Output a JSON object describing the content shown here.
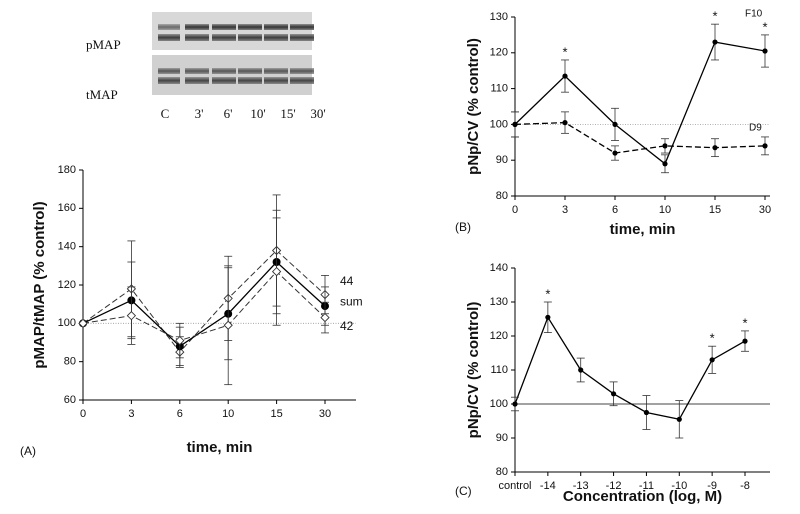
{
  "blot": {
    "rows": [
      "pMAP",
      "tMAP"
    ],
    "lanes": [
      "C",
      "3'",
      "6'",
      "10'",
      "15'",
      "30'"
    ]
  },
  "chart_data": [
    {
      "type": "line",
      "panel": "(A)",
      "xlabel": "time, min",
      "ylabel": "pMAP/tMAP (% control)",
      "categories": [
        "0",
        "3",
        "6",
        "10",
        "15",
        "30"
      ],
      "ylim": [
        60,
        180
      ],
      "yticks": [
        60,
        80,
        100,
        120,
        140,
        160,
        180
      ],
      "reference_line": 100,
      "series": [
        {
          "name": "44",
          "color": "#333333",
          "style": "dashed",
          "marker": "open-diamond",
          "values": [
            100,
            118,
            85,
            113,
            138,
            115
          ],
          "errors": [
            0,
            25,
            8,
            22,
            29,
            10
          ]
        },
        {
          "name": "sum",
          "color": "#000000",
          "style": "solid",
          "marker": "filled-circle",
          "values": [
            100,
            112,
            88,
            105,
            132,
            109
          ],
          "errors": [
            0,
            20,
            10,
            24,
            27,
            10
          ]
        },
        {
          "name": "42",
          "color": "#333333",
          "style": "dashed",
          "marker": "open-diamond",
          "values": [
            100,
            104,
            91,
            99,
            127,
            103
          ],
          "errors": [
            0,
            15,
            9,
            31,
            28,
            8
          ]
        }
      ]
    },
    {
      "type": "line",
      "panel": "(B)",
      "xlabel": "time, min",
      "ylabel": "pNp/CV (% control)",
      "categories": [
        "0",
        "3",
        "6",
        "10",
        "15",
        "30"
      ],
      "ylim": [
        80,
        130
      ],
      "yticks": [
        80,
        90,
        100,
        110,
        120,
        130
      ],
      "reference_line": 100,
      "series": [
        {
          "name": "F10",
          "color": "#000000",
          "style": "solid",
          "marker": "filled-circle",
          "values": [
            100,
            113.5,
            100,
            89,
            123,
            120.5
          ],
          "errors": [
            3.5,
            4.5,
            4.5,
            2.5,
            5,
            4.5
          ],
          "markers": [
            null,
            "*",
            null,
            null,
            "*",
            "*"
          ]
        },
        {
          "name": "D9",
          "color": "#000000",
          "style": "dashed",
          "marker": "filled-circle",
          "values": [
            100,
            100.5,
            92,
            94,
            93.5,
            94
          ],
          "errors": [
            3.5,
            3,
            2,
            2,
            2.5,
            2.5
          ]
        }
      ]
    },
    {
      "type": "line",
      "panel": "(C)",
      "xlabel": "Concentration (log, M)",
      "ylabel": "pNp/CV (% control)",
      "categories": [
        "control",
        "-14",
        "-13",
        "-12",
        "-11",
        "-10",
        "-9",
        "-8"
      ],
      "ylim": [
        80,
        140
      ],
      "yticks": [
        80,
        90,
        100,
        110,
        120,
        130,
        140
      ],
      "reference_line": 100,
      "series": [
        {
          "color": "#000000",
          "style": "solid",
          "marker": "filled-circle",
          "values": [
            100,
            125.5,
            110,
            103,
            97.5,
            95.5,
            113,
            118.5
          ],
          "errors": [
            2,
            4.5,
            3.5,
            3.5,
            5,
            5.5,
            4,
            3
          ],
          "markers": [
            null,
            "*",
            null,
            null,
            null,
            null,
            "*",
            "*"
          ]
        }
      ]
    }
  ]
}
